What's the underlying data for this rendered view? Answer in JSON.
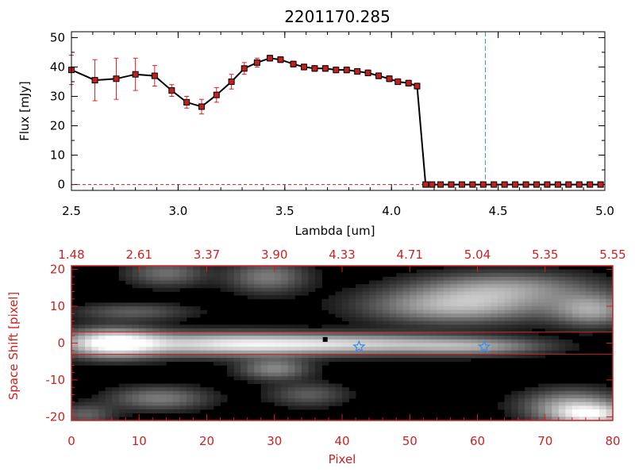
{
  "colors": {
    "spectrum_line": "#000000",
    "data_point": "#c02020",
    "error_bar": "#e02020",
    "marker_line": "#2aa0d8",
    "image_frame": "#cc2222",
    "slit_line": "#cc2222",
    "star_marker": "#3a8fe8",
    "image_background": "#000000"
  },
  "chart_data": [
    {
      "type": "line",
      "title": "2201170.285",
      "xlabel": "Lambda [um]",
      "ylabel": "Flux [mJy]",
      "xlim": [
        2.5,
        5.0
      ],
      "ylim": [
        -2,
        52
      ],
      "xticks": [
        "2.5",
        "3.0",
        "3.5",
        "4.0",
        "4.5",
        "5.0"
      ],
      "yticks": [
        "0",
        "10",
        "20",
        "30",
        "40",
        "50"
      ],
      "marker_x": 4.44,
      "series": [
        {
          "x": [
            2.5,
            2.61,
            2.71,
            2.8,
            2.89,
            2.97,
            3.04,
            3.11,
            3.18,
            3.25,
            3.31,
            3.37,
            3.43,
            3.48,
            3.54,
            3.59,
            3.64,
            3.69,
            3.74,
            3.79,
            3.84,
            3.89,
            3.94,
            3.99,
            4.03,
            4.08,
            4.12,
            4.16,
            4.19,
            4.23,
            4.28,
            4.33,
            4.38,
            4.43,
            4.48,
            4.53,
            4.58,
            4.63,
            4.68,
            4.73,
            4.78,
            4.83,
            4.88,
            4.93,
            4.98
          ],
          "y": [
            39,
            35.5,
            36,
            37.5,
            37,
            32,
            28,
            26.5,
            30.5,
            35,
            39.5,
            41.5,
            43,
            42.5,
            41,
            40,
            39.5,
            39.5,
            39,
            39,
            38.5,
            38,
            37,
            36,
            35,
            34.5,
            33.5,
            0,
            0,
            0,
            0,
            0,
            0,
            0,
            0,
            0,
            0,
            0,
            0,
            0,
            0,
            0,
            0,
            0,
            0
          ],
          "yerr": [
            5,
            7,
            7,
            5.5,
            3.5,
            2,
            2,
            2.5,
            2.5,
            2.5,
            2,
            1.5,
            1,
            1,
            1,
            1,
            1,
            1,
            1,
            1,
            1,
            1,
            1,
            1,
            1,
            1,
            1,
            0,
            0,
            0,
            0,
            0,
            0,
            0,
            0,
            0,
            0,
            0,
            0,
            0,
            0,
            0,
            0,
            0,
            0
          ]
        }
      ]
    },
    {
      "type": "heatmap",
      "xlabel": "Pixel",
      "ylabel": "Space Shift [pixel]",
      "xlim": [
        0,
        80
      ],
      "ylim": [
        -21,
        21
      ],
      "xticks": [
        "0",
        "10",
        "20",
        "30",
        "40",
        "50",
        "60",
        "70",
        "80"
      ],
      "yticks": [
        "-20",
        "-10",
        "0",
        "10",
        "20"
      ],
      "top_axis_ticks": [
        "1.48",
        "2.61",
        "3.37",
        "3.90",
        "4.33",
        "4.71",
        "5.04",
        "5.35",
        "5.55"
      ],
      "slit_lines_y": [
        3,
        -3
      ],
      "stars": [
        {
          "x": 42.5,
          "y": -1
        },
        {
          "x": 61,
          "y": -1
        }
      ],
      "dot": {
        "x": 37.5,
        "y": 1
      },
      "blobs": [
        {
          "x": 6,
          "y": 0,
          "sx": 5,
          "sy": 2.6,
          "a": 1.0
        },
        {
          "x": 22,
          "y": -0.3,
          "sx": 10,
          "sy": 2.2,
          "a": 0.72
        },
        {
          "x": 42,
          "y": -0.3,
          "sx": 12,
          "sy": 1.9,
          "a": 0.7
        },
        {
          "x": 60,
          "y": -1,
          "sx": 7,
          "sy": 1.6,
          "a": 0.42
        },
        {
          "x": 14,
          "y": 19,
          "sx": 4,
          "sy": 2.5,
          "a": 0.35
        },
        {
          "x": 29,
          "y": 18,
          "sx": 4,
          "sy": 3,
          "a": 0.4
        },
        {
          "x": 9,
          "y": 8.5,
          "sx": 6,
          "sy": 1.6,
          "a": 0.28
        },
        {
          "x": 57,
          "y": 10,
          "sx": 9,
          "sy": 3.2,
          "a": 0.62
        },
        {
          "x": 64,
          "y": 15,
          "sx": 9,
          "sy": 3,
          "a": 0.48
        },
        {
          "x": 77,
          "y": 9,
          "sx": 4,
          "sy": 3,
          "a": 0.55
        },
        {
          "x": 30,
          "y": -7,
          "sx": 3.5,
          "sy": 2,
          "a": 0.45
        },
        {
          "x": 13,
          "y": -15,
          "sx": 5,
          "sy": 2.2,
          "a": 0.4
        },
        {
          "x": 35,
          "y": -14,
          "sx": 4,
          "sy": 2.2,
          "a": 0.28
        },
        {
          "x": 74,
          "y": -17,
          "sx": 5,
          "sy": 3,
          "a": 0.55
        },
        {
          "x": 77,
          "y": -19.5,
          "sx": 4,
          "sy": 2,
          "a": 0.7
        },
        {
          "x": 2,
          "y": -19.5,
          "sx": 3,
          "sy": 2,
          "a": 0.3
        }
      ]
    }
  ]
}
